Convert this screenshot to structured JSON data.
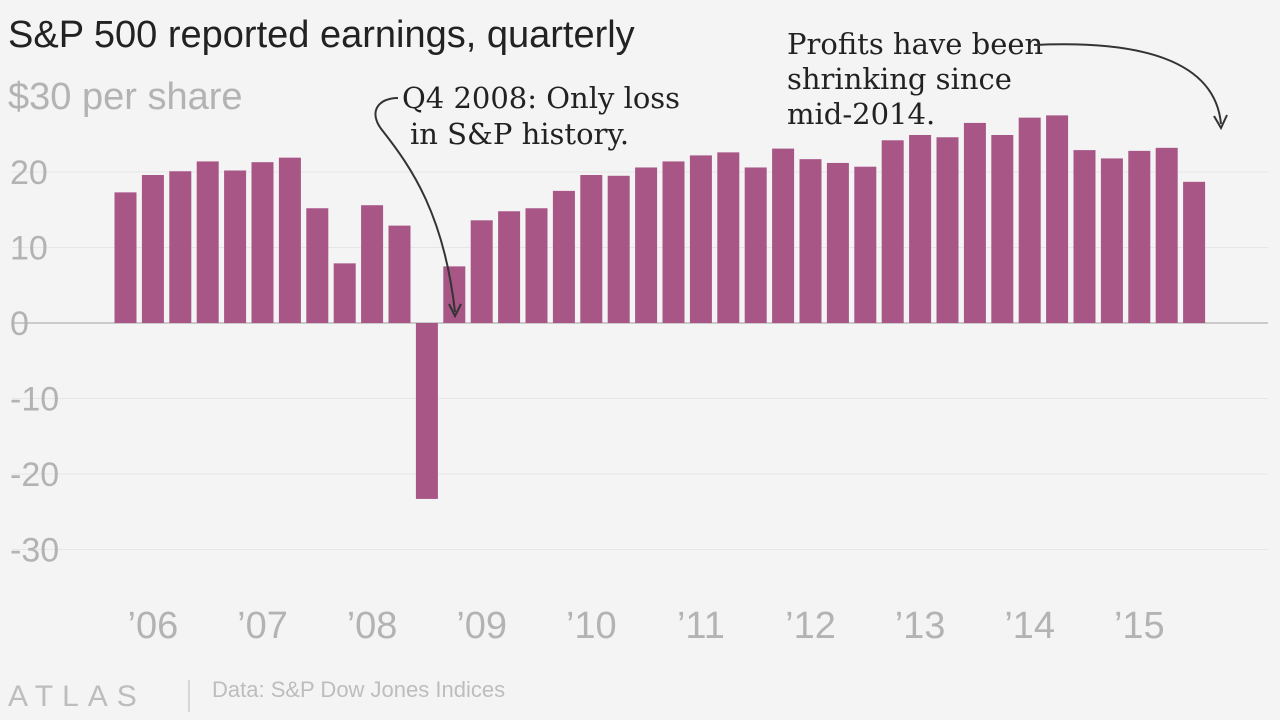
{
  "chart_data": {
    "type": "bar",
    "title": "S&P 500 reported earnings, quarterly",
    "ylabel": "$30 per share",
    "ylim": [
      -30,
      30
    ],
    "yticks": [
      -30,
      -20,
      -10,
      0,
      10,
      20
    ],
    "ytick_labels": [
      "-30",
      "-20",
      "-10",
      "0",
      "10",
      "20"
    ],
    "xtick_labels": [
      "’06",
      "’07",
      "’08",
      "’09",
      "’10",
      "’11",
      "’12",
      "’13",
      "’14",
      "’15"
    ],
    "grid": true,
    "bar_color": "#a75686",
    "categories": [
      "Q1 2006",
      "Q2 2006",
      "Q3 2006",
      "Q4 2006",
      "Q1 2007",
      "Q2 2007",
      "Q3 2007",
      "Q4 2007",
      "Q1 2008",
      "Q2 2008",
      "Q3 2008",
      "Q4 2008",
      "Q1 2009",
      "Q2 2009",
      "Q3 2009",
      "Q4 2009",
      "Q1 2010",
      "Q2 2010",
      "Q3 2010",
      "Q4 2010",
      "Q1 2011",
      "Q2 2011",
      "Q3 2011",
      "Q4 2011",
      "Q1 2012",
      "Q2 2012",
      "Q3 2012",
      "Q4 2012",
      "Q1 2013",
      "Q2 2013",
      "Q3 2013",
      "Q4 2013",
      "Q1 2014",
      "Q2 2014",
      "Q3 2014",
      "Q4 2014",
      "Q1 2015",
      "Q2 2015",
      "Q3 2015",
      "Q4 2015"
    ],
    "values": [
      17.3,
      19.6,
      20.1,
      21.4,
      20.2,
      21.3,
      21.9,
      15.2,
      7.9,
      15.6,
      12.9,
      -23.3,
      7.5,
      13.6,
      14.8,
      15.2,
      17.5,
      19.6,
      19.5,
      20.6,
      21.4,
      22.2,
      22.6,
      20.6,
      23.1,
      21.7,
      21.2,
      20.7,
      24.2,
      24.9,
      24.6,
      26.5,
      24.9,
      27.2,
      27.5,
      22.9,
      21.8,
      22.8,
      23.2,
      18.7
    ],
    "annotations": [
      {
        "lines": [
          "Q4 2008: Only loss",
          "in S&P history."
        ],
        "target": "Q4 2008"
      },
      {
        "lines": [
          "Profits have been",
          "shrinking since",
          "mid-2014."
        ],
        "target": "Q4 2015"
      }
    ]
  },
  "footer": {
    "brand": "ATLAS",
    "source": "Data: S&P Dow Jones Indices"
  }
}
